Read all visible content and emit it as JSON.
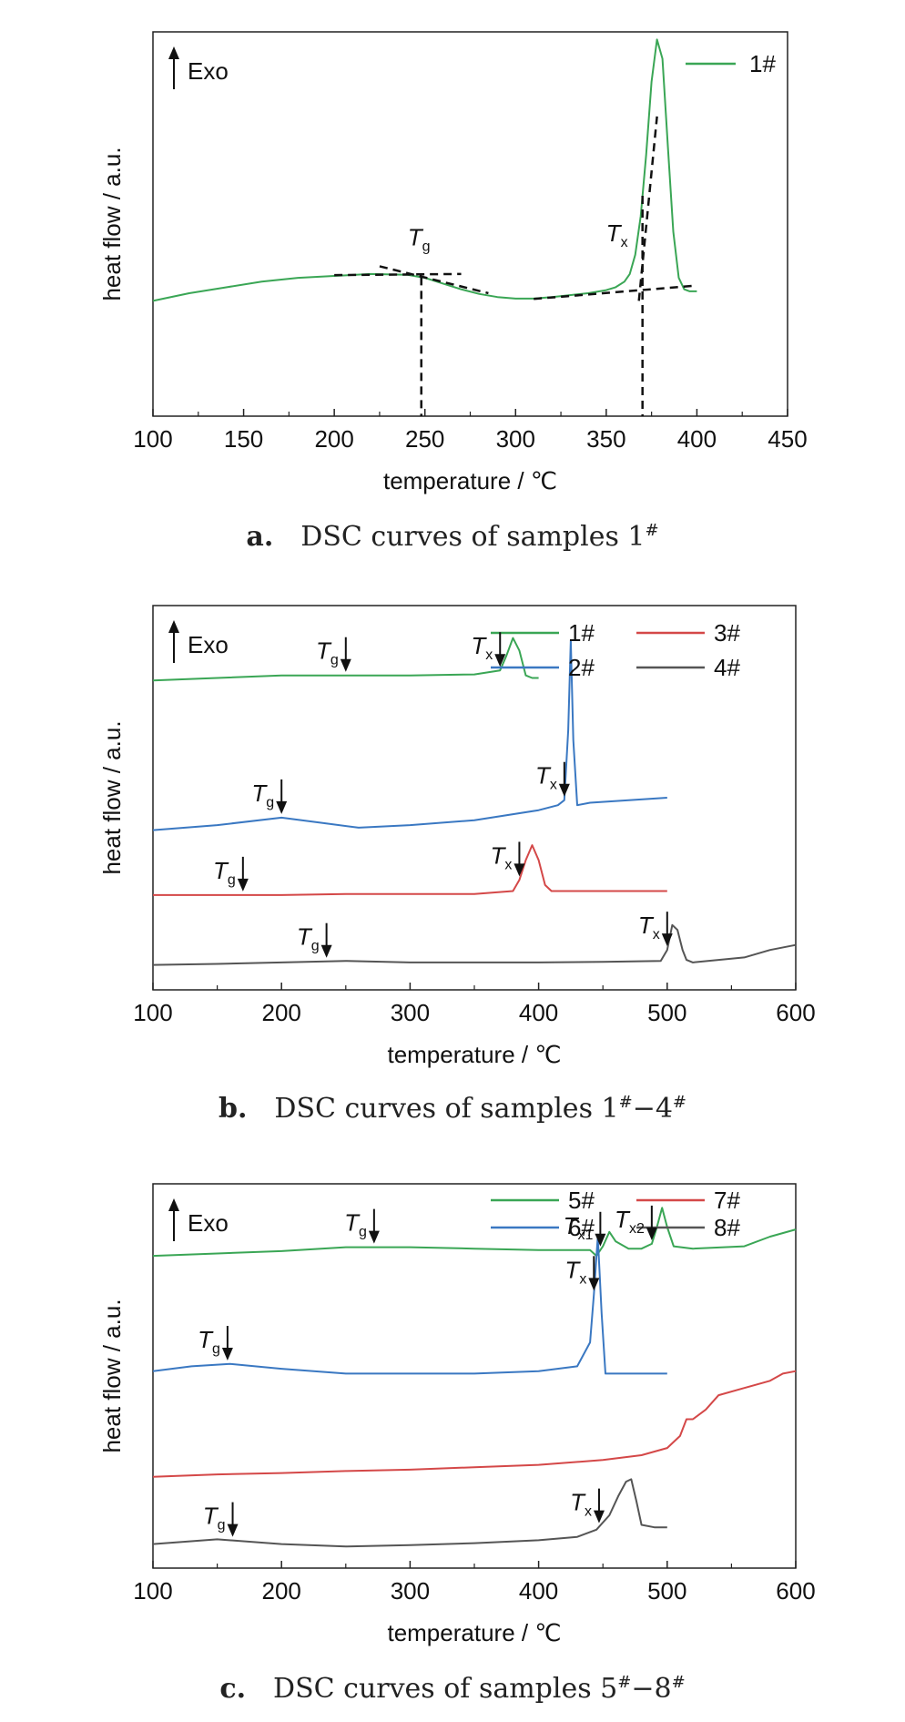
{
  "chart_data": [
    {
      "type": "line",
      "caption_label": "a.",
      "caption_text": "DSC curves of samples 1",
      "caption_sup": "#",
      "xlabel": "temperature / ℃",
      "ylabel": "heat flow / a.u.",
      "exo_label": "Exo",
      "xlim": [
        100,
        450
      ],
      "xticks": [
        100,
        150,
        200,
        250,
        300,
        350,
        400,
        450
      ],
      "legend_position": "top-right",
      "series": [
        {
          "name": "1#",
          "color": "#3aa655",
          "x": [
            100,
            120,
            140,
            160,
            180,
            200,
            220,
            240,
            250,
            260,
            270,
            280,
            290,
            300,
            310,
            320,
            330,
            340,
            350,
            355,
            360,
            363,
            366,
            369,
            372,
            375,
            378,
            381,
            384,
            387,
            390,
            393,
            396,
            400
          ],
          "y": [
            0.3,
            0.32,
            0.335,
            0.35,
            0.36,
            0.365,
            0.37,
            0.368,
            0.36,
            0.345,
            0.33,
            0.318,
            0.31,
            0.306,
            0.306,
            0.31,
            0.315,
            0.32,
            0.328,
            0.335,
            0.35,
            0.37,
            0.42,
            0.52,
            0.68,
            0.87,
            0.98,
            0.93,
            0.7,
            0.48,
            0.36,
            0.33,
            0.325,
            0.325
          ]
        }
      ],
      "annotations": [
        {
          "text": "T",
          "sub": "g",
          "x": 248
        },
        {
          "text": "T",
          "sub": "x",
          "x": 370
        }
      ]
    },
    {
      "type": "line",
      "caption_label": "b.",
      "caption_text": "DSC curves of samples 1",
      "caption_sup": "#",
      "caption_mid": "−4",
      "caption_sup2": "#",
      "xlabel": "temperature / ℃",
      "ylabel": "heat flow / a.u.",
      "exo_label": "Exo",
      "xlim": [
        100,
        600
      ],
      "xticks": [
        100,
        200,
        300,
        400,
        500,
        600
      ],
      "legend_position": "top-right",
      "series": [
        {
          "name": "1#",
          "color": "#3aa655",
          "x": [
            100,
            150,
            200,
            250,
            300,
            350,
            370,
            375,
            380,
            385,
            390,
            395,
            400
          ],
          "y": [
            0.9,
            0.905,
            0.91,
            0.91,
            0.91,
            0.912,
            0.92,
            0.95,
            0.985,
            0.96,
            0.91,
            0.905,
            0.905
          ]
        },
        {
          "name": "2#",
          "color": "#3a78c2",
          "x": [
            100,
            150,
            200,
            230,
            260,
            300,
            350,
            400,
            415,
            420,
            423,
            425,
            427,
            430,
            440,
            500
          ],
          "y": [
            0.6,
            0.61,
            0.625,
            0.615,
            0.605,
            0.61,
            0.62,
            0.64,
            0.65,
            0.66,
            0.8,
            0.98,
            0.78,
            0.65,
            0.655,
            0.665
          ]
        },
        {
          "name": "3#",
          "color": "#d44848",
          "x": [
            100,
            150,
            200,
            250,
            300,
            350,
            380,
            385,
            390,
            395,
            400,
            405,
            410,
            500
          ],
          "y": [
            0.47,
            0.47,
            0.47,
            0.472,
            0.472,
            0.472,
            0.478,
            0.5,
            0.54,
            0.57,
            0.54,
            0.49,
            0.478,
            0.478
          ]
        },
        {
          "name": "4#",
          "color": "#555555",
          "x": [
            100,
            150,
            200,
            250,
            300,
            350,
            400,
            450,
            495,
            500,
            504,
            508,
            512,
            515,
            520,
            560,
            580,
            600
          ],
          "y": [
            0.33,
            0.332,
            0.335,
            0.338,
            0.335,
            0.335,
            0.335,
            0.336,
            0.338,
            0.36,
            0.41,
            0.4,
            0.36,
            0.34,
            0.335,
            0.345,
            0.36,
            0.37
          ]
        }
      ],
      "annotations": [
        {
          "text": "T",
          "sub": "g",
          "x": 250,
          "series": 0
        },
        {
          "text": "T",
          "sub": "x",
          "x": 370,
          "series": 0
        },
        {
          "text": "T",
          "sub": "g",
          "x": 200,
          "series": 1
        },
        {
          "text": "T",
          "sub": "x",
          "x": 420,
          "series": 1
        },
        {
          "text": "T",
          "sub": "g",
          "x": 170,
          "series": 2
        },
        {
          "text": "T",
          "sub": "x",
          "x": 385,
          "series": 2
        },
        {
          "text": "T",
          "sub": "g",
          "x": 235,
          "series": 3
        },
        {
          "text": "T",
          "sub": "x",
          "x": 500,
          "series": 3
        }
      ]
    },
    {
      "type": "line",
      "caption_label": "c.",
      "caption_text": "DSC curves of samples 5",
      "caption_sup": "#",
      "caption_mid": "−8",
      "caption_sup2": "#",
      "xlabel": "temperature / ℃",
      "ylabel": "heat flow / a.u.",
      "exo_label": "Exo",
      "xlim": [
        100,
        600
      ],
      "xticks": [
        100,
        200,
        300,
        400,
        500,
        600
      ],
      "legend_position": "top-right",
      "series": [
        {
          "name": "5#",
          "color": "#3aa655",
          "x": [
            100,
            150,
            200,
            250,
            300,
            350,
            400,
            440,
            445,
            450,
            455,
            460,
            470,
            480,
            488,
            492,
            496,
            500,
            505,
            520,
            560,
            580,
            600
          ],
          "y": [
            0.9,
            0.905,
            0.91,
            0.918,
            0.918,
            0.915,
            0.912,
            0.912,
            0.9,
            0.92,
            0.95,
            0.93,
            0.915,
            0.915,
            0.925,
            0.96,
            1.0,
            0.96,
            0.92,
            0.915,
            0.92,
            0.94,
            0.955
          ]
        },
        {
          "name": "6#",
          "color": "#3a78c2",
          "x": [
            100,
            130,
            160,
            200,
            250,
            300,
            350,
            400,
            430,
            440,
            443,
            446,
            449,
            452,
            460,
            500
          ],
          "y": [
            0.66,
            0.67,
            0.675,
            0.665,
            0.655,
            0.655,
            0.655,
            0.66,
            0.67,
            0.72,
            0.82,
            0.94,
            0.78,
            0.655,
            0.655,
            0.655
          ]
        },
        {
          "name": "7#",
          "color": "#d44848",
          "x": [
            100,
            150,
            200,
            250,
            300,
            350,
            400,
            450,
            480,
            500,
            510,
            515,
            520,
            530,
            540,
            560,
            580,
            590,
            600
          ],
          "y": [
            0.44,
            0.445,
            0.448,
            0.452,
            0.455,
            0.46,
            0.465,
            0.475,
            0.485,
            0.5,
            0.525,
            0.56,
            0.56,
            0.58,
            0.61,
            0.625,
            0.64,
            0.655,
            0.66
          ]
        },
        {
          "name": "8#",
          "color": "#555555",
          "x": [
            100,
            150,
            200,
            250,
            300,
            350,
            400,
            430,
            445,
            455,
            462,
            468,
            472,
            476,
            480,
            490,
            500
          ],
          "y": [
            0.3,
            0.31,
            0.3,
            0.295,
            0.298,
            0.302,
            0.308,
            0.315,
            0.33,
            0.36,
            0.4,
            0.43,
            0.435,
            0.39,
            0.34,
            0.335,
            0.335
          ]
        }
      ],
      "annotations": [
        {
          "text": "T",
          "sub": "g",
          "x": 272,
          "series": 0
        },
        {
          "text": "T",
          "sub": "x1",
          "x": 448,
          "series": 0
        },
        {
          "text": "T",
          "sub": "x2",
          "x": 488,
          "series": 0
        },
        {
          "text": "T",
          "sub": "g",
          "x": 158,
          "series": 1
        },
        {
          "text": "T",
          "sub": "x",
          "x": 443,
          "series": 1
        },
        {
          "text": "T",
          "sub": "g",
          "x": 162,
          "series": 3
        },
        {
          "text": "T",
          "sub": "x",
          "x": 447,
          "series": 3
        }
      ]
    }
  ]
}
